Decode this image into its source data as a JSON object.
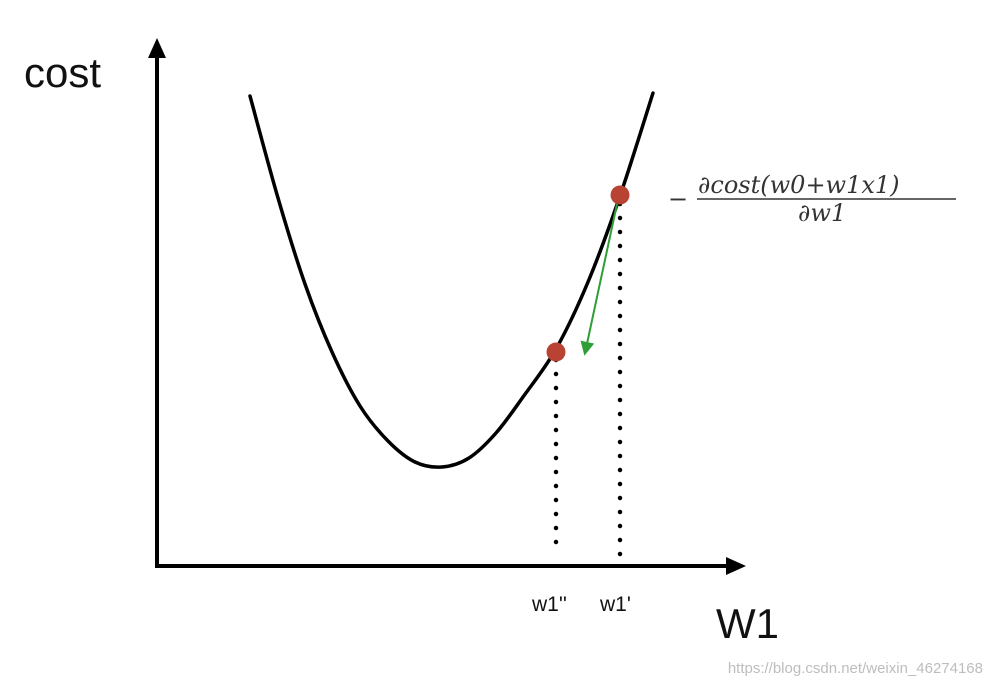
{
  "axes": {
    "y_label": "cost",
    "x_label": "W1"
  },
  "points": {
    "w1_prime_label": "w1'",
    "w1_double_prime_label": "w1''"
  },
  "gradient_formula": {
    "sign": "−",
    "numerator": "∂cost(w0+w1x1)",
    "denominator": "∂w1"
  },
  "watermark": "https://blog.csdn.net/weixin_46274168",
  "colors": {
    "curve": "#000000",
    "axes": "#000000",
    "point": "#b84332",
    "arrow": "#2e9e37",
    "drop_line": "#000000"
  }
}
